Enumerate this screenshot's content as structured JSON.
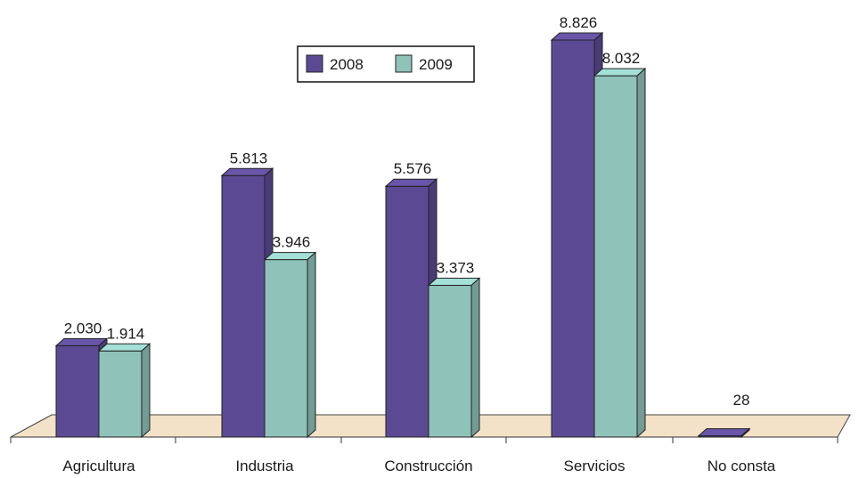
{
  "chart_data": {
    "type": "bar",
    "categories": [
      "Agricultura",
      "Industria",
      "Construcción",
      "Servicios",
      "No consta"
    ],
    "series": [
      {
        "name": "2008",
        "values": [
          2030,
          5813,
          5576,
          8826,
          28
        ],
        "labels": [
          "2.030",
          "5.813",
          "5.576",
          "8.826",
          ""
        ],
        "color": "#5b4a93"
      },
      {
        "name": "2009",
        "values": [
          1914,
          3946,
          3373,
          8032,
          0
        ],
        "labels": [
          "1.914",
          "3.946",
          "3.373",
          "8.032",
          ""
        ],
        "color": "#8fc3ba"
      }
    ],
    "extra_labels": [
      {
        "category_index": 4,
        "text": "28"
      }
    ],
    "ylim": [
      0,
      9000
    ],
    "three_d": true,
    "floor_color": "#f3e2c7",
    "grid": false,
    "legend_position": "top-center"
  }
}
